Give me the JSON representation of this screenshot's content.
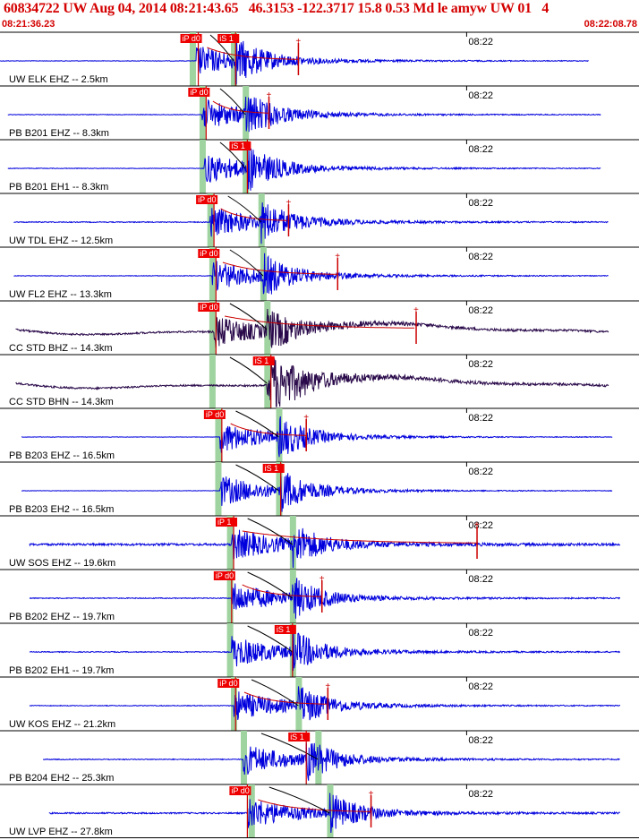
{
  "header": {
    "title": "60834722 UW Aug 04, 2014 08:21:43.65   46.3153 -122.3717 15.8 0.53 Md le amyw UW 01   4",
    "start_time": "08:21:36.23",
    "end_time": "08:22:08.78"
  },
  "colors": {
    "header_text": "#d40000",
    "trace_blue": "#0000dd",
    "trace_dark": "#2a0a4a",
    "pick_box": "#ee0000",
    "pick_line": "#cc0000",
    "predicted_band": "#9fd39f",
    "separator": "#000000",
    "tick": "#000000"
  },
  "chart_data": {
    "type": "seismogram",
    "time_window": {
      "start": "08:21:36.23",
      "end": "08:22:08.78",
      "duration_s": 32.55
    },
    "tick_label": "08:22",
    "channels": [
      {
        "label": "UW ELK EHZ -- 2.5km",
        "color": "trace_blue",
        "trace_start": 0.0,
        "trace_end": 30.0,
        "p_pick": {
          "label": "iP d0",
          "t": 10.1
        },
        "s_pick": {
          "label": "iS 1",
          "t": 12.0
        },
        "coda_end": 15.2,
        "wave_start": 10.0,
        "p_band": 9.8,
        "s_band": 11.9,
        "noise": 0.03
      },
      {
        "label": "PB B201 EHZ -- 8.3km",
        "color": "trace_blue",
        "trace_start": 0.4,
        "trace_end": 30.6,
        "p_pick": {
          "label": "iP d0",
          "t": 10.5
        },
        "s_pick": null,
        "coda_end": 13.7,
        "wave_start": 10.3,
        "p_band": 10.3,
        "s_band": 12.5,
        "noise": 0.03
      },
      {
        "label": "PB B201 EH1 -- 8.3km",
        "color": "trace_blue",
        "trace_start": 0.4,
        "trace_end": 30.6,
        "p_pick": null,
        "s_pick": {
          "label": "iS 1",
          "t": 12.6
        },
        "coda_end": null,
        "wave_start": 10.4,
        "p_band": 10.3,
        "s_band": 12.5,
        "noise": 0.03
      },
      {
        "label": "UW TDL EHZ -- 12.5km",
        "color": "trace_blue",
        "trace_start": 0.7,
        "trace_end": 31.0,
        "p_pick": {
          "label": "iP d0",
          "t": 10.9
        },
        "s_pick": null,
        "coda_end": 14.7,
        "wave_start": 10.7,
        "p_band": 10.7,
        "s_band": 13.3,
        "noise": 0.05
      },
      {
        "label": "UW FL2 EHZ -- 13.3km",
        "color": "trace_blue",
        "trace_start": 0.7,
        "trace_end": 31.0,
        "p_pick": {
          "label": "iP d0",
          "t": 11.0
        },
        "s_pick": null,
        "coda_end": 17.2,
        "wave_start": 10.8,
        "p_band": 10.8,
        "s_band": 13.4,
        "noise": 0.03
      },
      {
        "label": "CC STD BHZ -- 14.3km",
        "color": "trace_dark",
        "trace_start": 0.8,
        "trace_end": 31.0,
        "p_pick": {
          "label": "iP d0",
          "t": 11.0
        },
        "s_pick": null,
        "coda_end": 21.2,
        "wave_start": 10.9,
        "p_band": 10.8,
        "s_band": 13.6,
        "noise": 0.1
      },
      {
        "label": "CC STD BHN -- 14.3km",
        "color": "trace_dark",
        "trace_start": 0.8,
        "trace_end": 31.0,
        "p_pick": null,
        "s_pick": {
          "label": "iS 1",
          "t": 13.8
        },
        "coda_end": null,
        "wave_start": 13.6,
        "p_band": 10.8,
        "s_band": 13.6,
        "noise": 0.1
      },
      {
        "label": "PB B203 EHZ -- 16.5km",
        "color": "trace_blue",
        "trace_start": 1.1,
        "trace_end": 31.2,
        "p_pick": {
          "label": "iP d0",
          "t": 11.3
        },
        "s_pick": null,
        "coda_end": 15.6,
        "wave_start": 11.2,
        "p_band": 11.1,
        "s_band": 14.2,
        "noise": 0.02
      },
      {
        "label": "PB B203 EH2 -- 16.5km",
        "color": "trace_blue",
        "trace_start": 1.1,
        "trace_end": 31.2,
        "p_pick": null,
        "s_pick": {
          "label": "iS 1",
          "t": 14.3
        },
        "coda_end": null,
        "wave_start": 11.2,
        "p_band": 11.1,
        "s_band": 14.2,
        "noise": 0.02
      },
      {
        "label": "UW SOS EHZ -- 19.6km",
        "color": "trace_blue",
        "trace_start": 1.5,
        "trace_end": 31.6,
        "p_pick": {
          "label": "iP 1",
          "t": 11.9
        },
        "s_pick": null,
        "coda_end": 24.3,
        "wave_start": 11.8,
        "p_band": 11.7,
        "s_band": 14.9,
        "noise": 0.12
      },
      {
        "label": "PB B202 EHZ -- 19.7km",
        "color": "trace_blue",
        "trace_start": 1.5,
        "trace_end": 31.6,
        "p_pick": {
          "label": "iP d0",
          "t": 11.8
        },
        "s_pick": null,
        "coda_end": 16.4,
        "wave_start": 11.8,
        "p_band": 11.7,
        "s_band": 14.9,
        "noise": 0.05
      },
      {
        "label": "PB B202 EH1 -- 19.7km",
        "color": "trace_blue",
        "trace_start": 1.5,
        "trace_end": 31.6,
        "p_pick": null,
        "s_pick": {
          "label": "iS 1",
          "t": 14.9
        },
        "coda_end": null,
        "wave_start": 11.8,
        "p_band": 11.7,
        "s_band": 14.9,
        "noise": 0.05
      },
      {
        "label": "UW KOS EHZ -- 21.2km",
        "color": "trace_blue",
        "trace_start": 1.5,
        "trace_end": 31.6,
        "p_pick": {
          "label": "iP d0",
          "t": 12.0
        },
        "s_pick": null,
        "coda_end": 16.7,
        "wave_start": 11.9,
        "p_band": 11.9,
        "s_band": 15.2,
        "noise": 0.04
      },
      {
        "label": "PB B204 EH2 -- 25.3km",
        "color": "trace_blue",
        "trace_start": 2.2,
        "trace_end": 31.6,
        "p_pick": null,
        "s_pick": {
          "label": "iS 1",
          "t": 15.6
        },
        "coda_end": null,
        "wave_start": 12.4,
        "p_band": 12.4,
        "s_band": 16.2,
        "noise": 0.05
      },
      {
        "label": "UW LVP EHZ -- 27.8km",
        "color": "trace_blue",
        "trace_start": 2.5,
        "trace_end": 31.6,
        "p_pick": {
          "label": "iP d0",
          "t": 12.6
        },
        "s_pick": null,
        "coda_end": 18.9,
        "wave_start": 12.6,
        "p_band": 12.8,
        "s_band": 16.8,
        "noise": 0.08
      }
    ]
  }
}
